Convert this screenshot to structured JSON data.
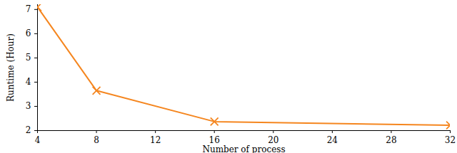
{
  "chart_data": {
    "type": "line",
    "x": [
      4,
      8,
      16,
      32
    ],
    "values": [
      7.1,
      3.65,
      2.37,
      2.22
    ],
    "color": "#f5861f",
    "marker": "x",
    "xlabel": "Number of process",
    "ylabel": "Runtime (Hour)",
    "xlim": [
      4,
      32
    ],
    "xticks": [
      4,
      8,
      12,
      16,
      20,
      24,
      28,
      32
    ],
    "ylim": [
      2,
      7.2
    ],
    "yticks": [
      2,
      3,
      4,
      5,
      6,
      7
    ],
    "grid": false
  }
}
